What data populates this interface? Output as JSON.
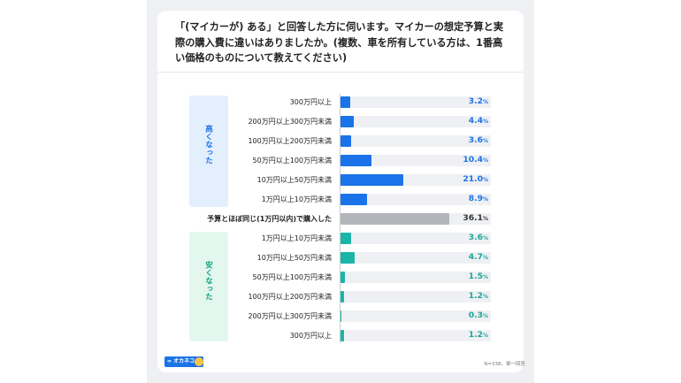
{
  "title": "「(マイカーが) ある」と回答した方に伺います。マイカーの想定予算と実際の購入費に違いはありましたか。(複数、車を所有している方は、1番高い価格のものについて教えてください)",
  "groups": {
    "higher": "高くなった",
    "lower": "安くなった"
  },
  "colors": {
    "higher": "#1a73e8",
    "same": "#b3b5ba",
    "lower": "#1bb5a8",
    "higher_bg": "#e3effd",
    "lower_bg": "#e4f7ef",
    "higher_text": "#1a73e8",
    "lower_text": "#0fa37f",
    "value_blue": "#1a73e8",
    "value_teal": "#1aa79a",
    "value_gray": "#333333"
  },
  "chart_data": {
    "type": "bar",
    "orientation": "horizontal",
    "value_suffix": "%",
    "categories": [
      "300万円以上",
      "200万円以上300万円未満",
      "100万円以上200万円未満",
      "50万円以上100万円未満",
      "10万円以上50万円未満",
      "1万円以上10万円未満",
      "予算とほぼ同じ(1万円以内)で購入した",
      "1万円以上10万円未満",
      "10万円以上50万円未満",
      "50万円以上100万円未満",
      "100万円以上200万円未満",
      "200万円以上300万円未満",
      "300万円以上"
    ],
    "values": [
      3.2,
      4.4,
      3.6,
      10.4,
      21.0,
      8.9,
      36.1,
      3.6,
      4.7,
      1.5,
      1.2,
      0.3,
      1.2
    ],
    "value_labels": [
      "3.2",
      "4.4",
      "3.6",
      "10.4",
      "21.0",
      "8.9",
      "36.1",
      "3.6",
      "4.7",
      "1.5",
      "1.2",
      "0.3",
      "1.2"
    ],
    "group_of_row": [
      "higher",
      "higher",
      "higher",
      "higher",
      "higher",
      "higher",
      "same",
      "lower",
      "lower",
      "lower",
      "lower",
      "lower",
      "lower"
    ],
    "xlim": [
      0,
      50
    ]
  },
  "logo_text": "∞ オカネコ",
  "footnote": "N=338、単一回答"
}
